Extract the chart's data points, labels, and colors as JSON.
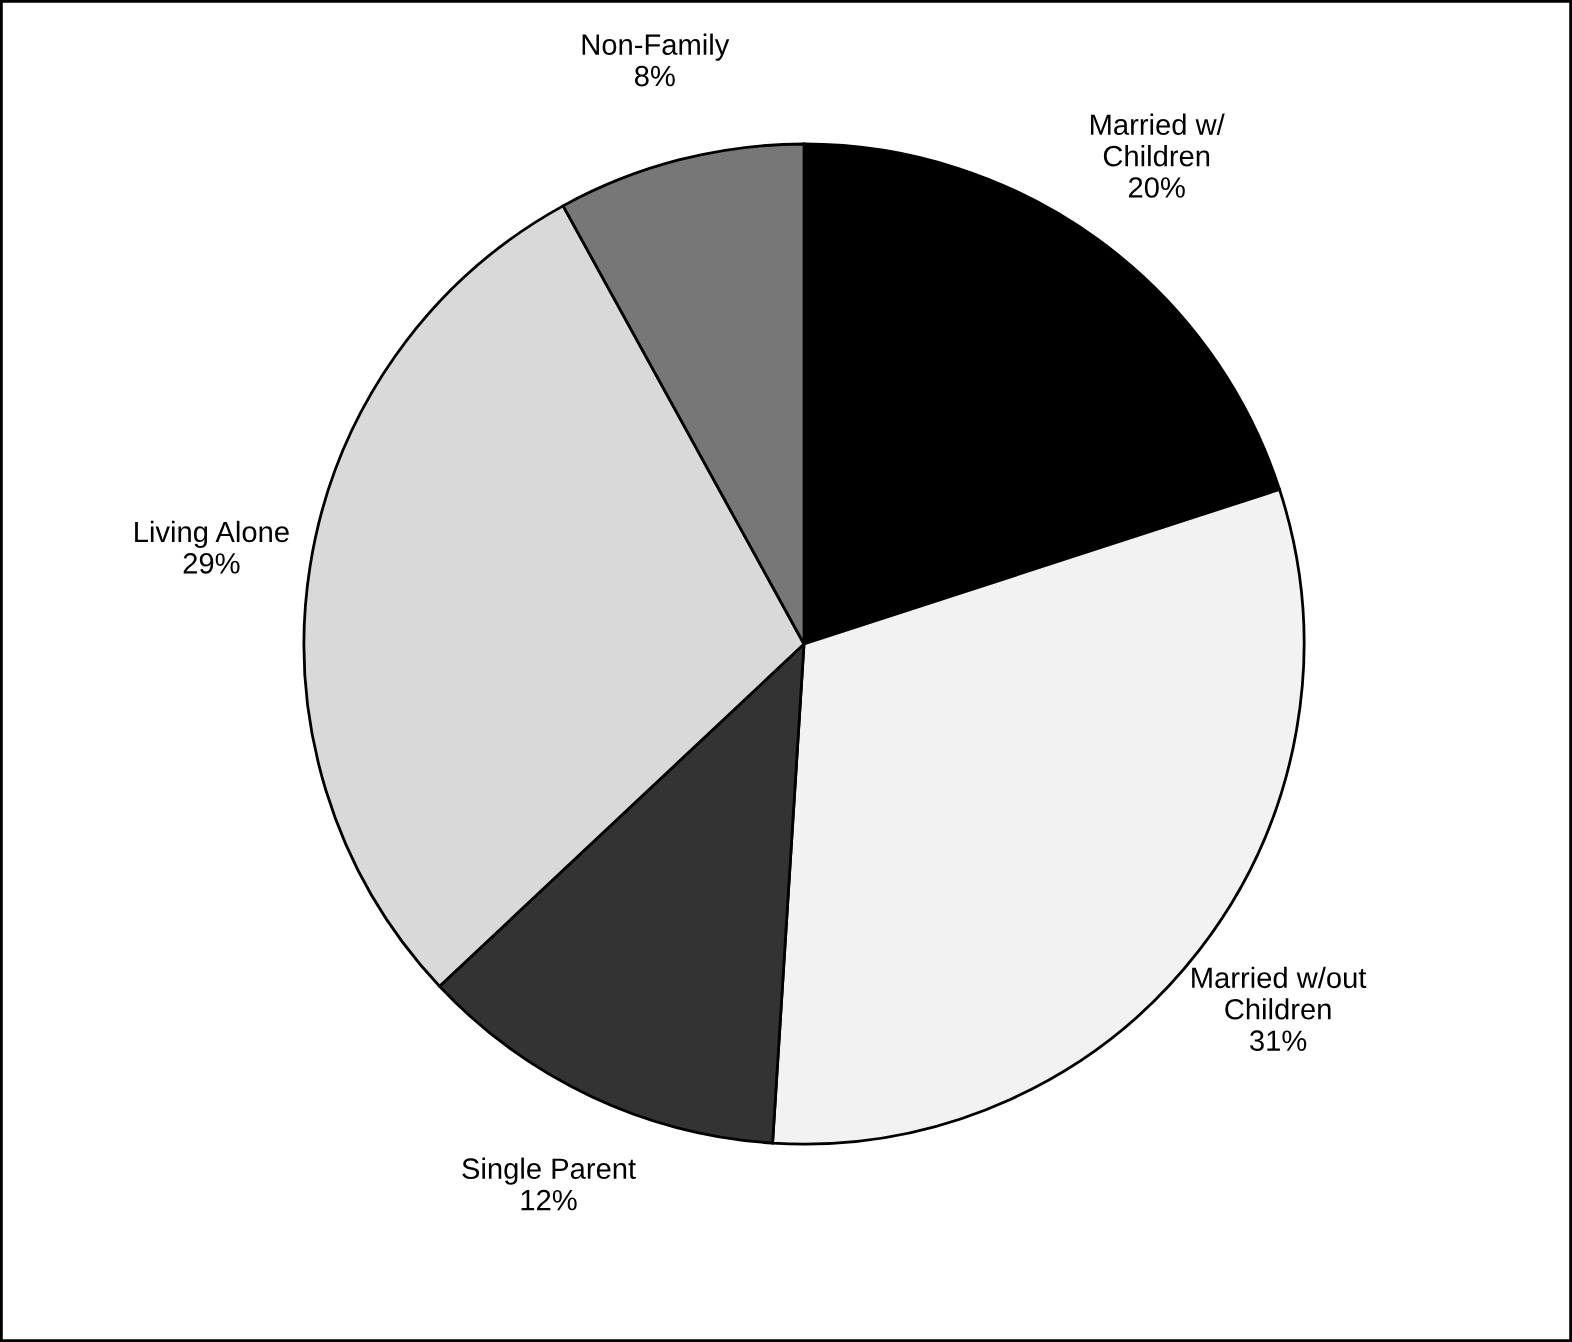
{
  "chart_data": {
    "type": "pie",
    "categories": [
      "Married w/\nChildren",
      "Married w/out\nChildren",
      "Single Parent",
      "Living Alone",
      "Non-Family"
    ],
    "values": [
      20,
      31,
      12,
      29,
      8
    ],
    "value_labels": [
      "20%",
      "31%",
      "12%",
      "29%",
      "8%"
    ],
    "colors": [
      "#000000",
      "#f2f2f2",
      "#333333",
      "#d9d9d9",
      "#777777"
    ],
    "legend": false
  }
}
